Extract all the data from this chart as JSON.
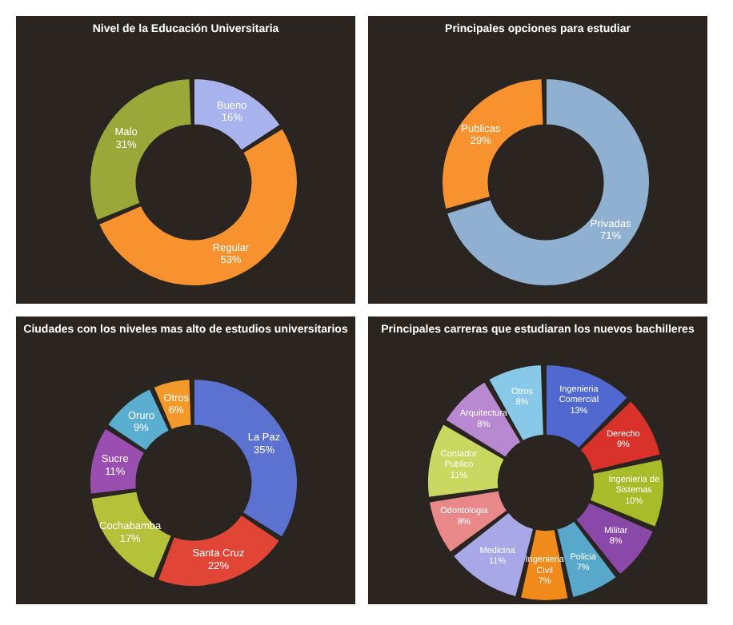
{
  "chart_data": [
    {
      "type": "donut",
      "title": "Nivel de la Educación Universitaria",
      "categories": [
        "Bueno",
        "Regular",
        "Malo"
      ],
      "values": [
        16,
        53,
        31
      ],
      "colors": [
        "#a9b4ee",
        "#f7922e",
        "#9aa83a"
      ],
      "value_labels": [
        "16%",
        "53%",
        "31%"
      ]
    },
    {
      "type": "donut",
      "title": "Principales opciones para estudiar",
      "categories": [
        "Privadas",
        "Publicas"
      ],
      "values": [
        71,
        29
      ],
      "colors": [
        "#8fb0d0",
        "#f7922e"
      ],
      "value_labels": [
        "71%",
        "29%"
      ]
    },
    {
      "type": "donut",
      "title": "Ciudades con los niveles mas alto de estudios universitarios",
      "categories": [
        "La Paz",
        "Santa Cruz",
        "Cochabamba",
        "Sucre",
        "Oruro",
        "Otros"
      ],
      "values": [
        35,
        22,
        17,
        11,
        9,
        6
      ],
      "colors": [
        "#5b72d0",
        "#e04535",
        "#b4c23a",
        "#9a4fb0",
        "#5aafd0",
        "#f39a2a"
      ],
      "value_labels": [
        "35%",
        "22%",
        "17%",
        "11%",
        "9%",
        "6%"
      ]
    },
    {
      "type": "donut",
      "title": "Principales carreras que estudiaran los nuevos bachilleres",
      "categories": [
        "Ingenieria Comercial",
        "Derecho",
        "Ingenieria de Sistemas",
        "Militar",
        "Policia",
        "Ingenieria Civil",
        "Medicina",
        "Odontologia",
        "Contador Publico",
        "Arquitectura",
        "Otros"
      ],
      "values": [
        13,
        9,
        10,
        8,
        7,
        7,
        11,
        8,
        11,
        8,
        8
      ],
      "colors": [
        "#5068d0",
        "#d8322a",
        "#a8bc2a",
        "#8a48a8",
        "#58a8cc",
        "#f08a1a",
        "#a8a8e8",
        "#e88888",
        "#c8d860",
        "#b888d0",
        "#88c8e8"
      ],
      "value_labels": [
        "13%",
        "9%",
        "10%",
        "8%",
        "7%",
        "7%",
        "11%",
        "8%",
        "11%",
        "8%",
        "8%"
      ]
    }
  ]
}
